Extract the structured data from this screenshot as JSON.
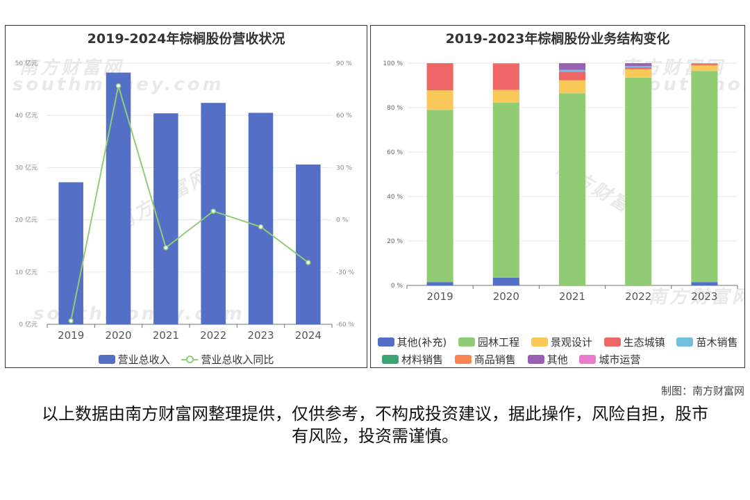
{
  "watermark": {
    "cn": "南方财富网",
    "en": "southmoney.com"
  },
  "chart_data": [
    {
      "type": "bar",
      "title": "2019-2024年棕榈股份营收状况",
      "categories": [
        "2019",
        "2020",
        "2021",
        "2022",
        "2023",
        "2024"
      ],
      "series": [
        {
          "name": "营业总收入",
          "type": "bar",
          "axis": "left",
          "color": "#5470c6",
          "values": [
            27.2,
            48.2,
            40.4,
            42.4,
            40.5,
            30.6
          ]
        },
        {
          "name": "营业总收入同比",
          "type": "line",
          "axis": "right",
          "color": "#91cc75",
          "values": [
            -58.0,
            77.0,
            -16.0,
            5.0,
            -4.0,
            -24.5
          ]
        }
      ],
      "y_left": {
        "min": 0,
        "max": 50,
        "step": 10,
        "suffix": " 亿元"
      },
      "y_right": {
        "min": -60,
        "max": 90,
        "step": 30,
        "suffix": " %"
      },
      "legend_position": "bottom"
    },
    {
      "type": "bar",
      "stacked": true,
      "title": "2019-2023年棕榈股份业务结构变化",
      "categories": [
        "2019",
        "2020",
        "2021",
        "2022",
        "2023"
      ],
      "series": [
        {
          "name": "其他(补充)",
          "color": "#5470c6",
          "values": [
            1.5,
            3.5,
            0,
            0,
            1.5
          ]
        },
        {
          "name": "园林工程",
          "color": "#91cc75",
          "values": [
            77.5,
            78.7,
            86.5,
            93.5,
            95.0
          ]
        },
        {
          "name": "景观设计",
          "color": "#fac858",
          "values": [
            8.8,
            5.8,
            5.8,
            3.8,
            2.5
          ]
        },
        {
          "name": "生态城镇",
          "color": "#ee6666",
          "values": [
            12.2,
            11.7,
            3.9,
            0.8,
            0.6
          ]
        },
        {
          "name": "苗木销售",
          "color": "#73c0de",
          "values": [
            0,
            0,
            0.8,
            0.6,
            0
          ]
        },
        {
          "name": "材料销售",
          "color": "#3ba272",
          "values": [
            0,
            0,
            0,
            0,
            0
          ]
        },
        {
          "name": "商品销售",
          "color": "#fc8452",
          "values": [
            0,
            0.3,
            0,
            0,
            0.4
          ]
        },
        {
          "name": "其他",
          "color": "#9a60b4",
          "values": [
            0,
            0,
            3.0,
            1.3,
            0
          ]
        },
        {
          "name": "城市运营",
          "color": "#ea7ccc",
          "values": [
            0,
            0,
            0,
            0,
            0
          ]
        }
      ],
      "y": {
        "min": 0,
        "max": 100,
        "step": 20,
        "suffix": " %"
      },
      "legend_position": "bottom"
    }
  ],
  "credit": "制图：南方财富网",
  "disclaimer": "以上数据由南方财富网整理提供，仅供参考，不构成投资建议，据此操作，风险自担，股市有风险，投资需谨慎。"
}
